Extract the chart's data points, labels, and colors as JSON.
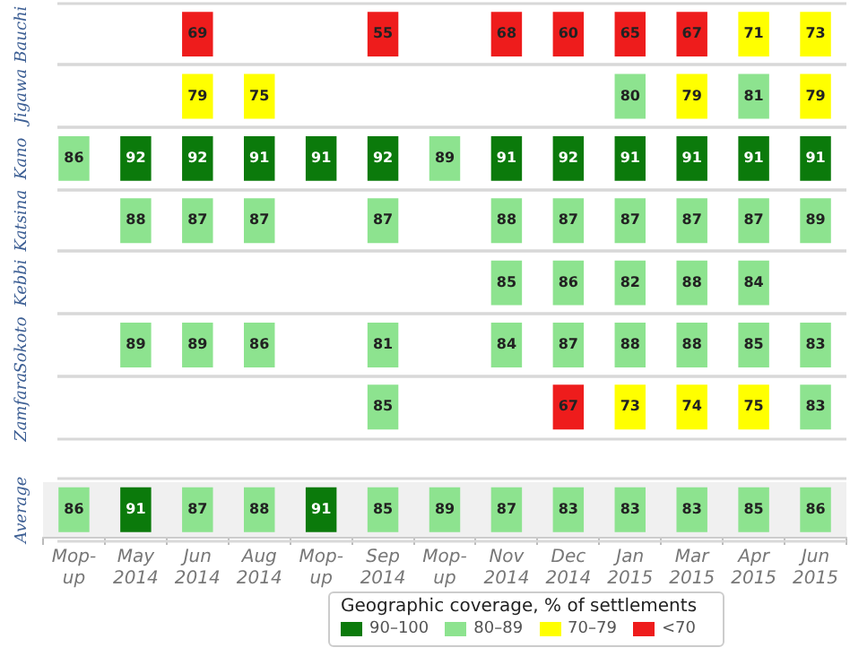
{
  "chart_data": {
    "type": "heatmap",
    "legend_title": "Geographic coverage, % of settlements",
    "categories": [
      "Mop-up",
      "May 2014",
      "Jun 2014",
      "Aug 2014",
      "Mop-up",
      "Sep 2014",
      "Mop-up",
      "Nov 2014",
      "Dec 2014",
      "Jan 2015",
      "Mar 2015",
      "Apr 2015",
      "Jun 2015"
    ],
    "y_categories": [
      "Bauchi",
      "Jigawa",
      "Kano",
      "Katsina",
      "Kebbi",
      "Sokoto",
      "Zamfara",
      "Average"
    ],
    "cells": [
      [
        null,
        null,
        69,
        null,
        null,
        55,
        null,
        68,
        60,
        65,
        67,
        71,
        73
      ],
      [
        null,
        null,
        79,
        75,
        null,
        null,
        null,
        null,
        null,
        80,
        79,
        81,
        79
      ],
      [
        86,
        92,
        92,
        91,
        91,
        92,
        89,
        91,
        92,
        91,
        91,
        91,
        91
      ],
      [
        null,
        88,
        87,
        87,
        null,
        87,
        null,
        88,
        87,
        87,
        87,
        87,
        89
      ],
      [
        null,
        null,
        null,
        null,
        null,
        null,
        null,
        85,
        86,
        82,
        88,
        84,
        null
      ],
      [
        null,
        89,
        89,
        86,
        null,
        81,
        null,
        84,
        87,
        88,
        88,
        85,
        83
      ],
      [
        null,
        null,
        null,
        null,
        null,
        85,
        null,
        null,
        67,
        73,
        74,
        75,
        83
      ],
      [
        86,
        91,
        87,
        88,
        91,
        85,
        89,
        87,
        83,
        83,
        83,
        85,
        86
      ]
    ],
    "colors": [
      [
        null,
        null,
        "#ee1c1c",
        null,
        null,
        "#ee1c1c",
        null,
        "#ee1c1c",
        "#ee1c1c",
        "#ee1c1c",
        "#ee1c1c",
        "#ffff00",
        "#ffff00"
      ],
      [
        null,
        null,
        "#ffff00",
        "#ffff00",
        null,
        null,
        null,
        null,
        null,
        "#8de38f",
        "#ffff00",
        "#8de38f",
        "#ffff00"
      ],
      [
        "#8de38f",
        "#0b7a0b",
        "#0b7a0b",
        "#0b7a0b",
        "#0b7a0b",
        "#0b7a0b",
        "#8de38f",
        "#0b7a0b",
        "#0b7a0b",
        "#0b7a0b",
        "#0b7a0b",
        "#0b7a0b",
        "#0b7a0b"
      ],
      [
        null,
        "#8de38f",
        "#8de38f",
        "#8de38f",
        null,
        "#8de38f",
        null,
        "#8de38f",
        "#8de38f",
        "#8de38f",
        "#8de38f",
        "#8de38f",
        "#8de38f"
      ],
      [
        null,
        null,
        null,
        null,
        null,
        null,
        null,
        "#8de38f",
        "#8de38f",
        "#8de38f",
        "#8de38f",
        "#8de38f",
        null
      ],
      [
        null,
        "#8de38f",
        "#8de38f",
        "#8de38f",
        null,
        "#8de38f",
        null,
        "#8de38f",
        "#8de38f",
        "#8de38f",
        "#8de38f",
        "#8de38f",
        "#8de38f"
      ],
      [
        null,
        null,
        null,
        null,
        null,
        "#8de38f",
        null,
        null,
        "#ee1c1c",
        "#ffff00",
        "#ffff00",
        "#ffff00",
        "#8de38f"
      ],
      [
        "#8de38f",
        "#0b7a0b",
        "#8de38f",
        "#8de38f",
        "#0b7a0b",
        "#8de38f",
        "#8de38f",
        "#8de38f",
        "#8de38f",
        "#8de38f",
        "#8de38f",
        "#8de38f",
        "#8de38f"
      ]
    ],
    "annotations": [
      "90–100",
      "80–89",
      "70–79",
      "<70"
    ],
    "data_labels": true,
    "grid": false
  }
}
